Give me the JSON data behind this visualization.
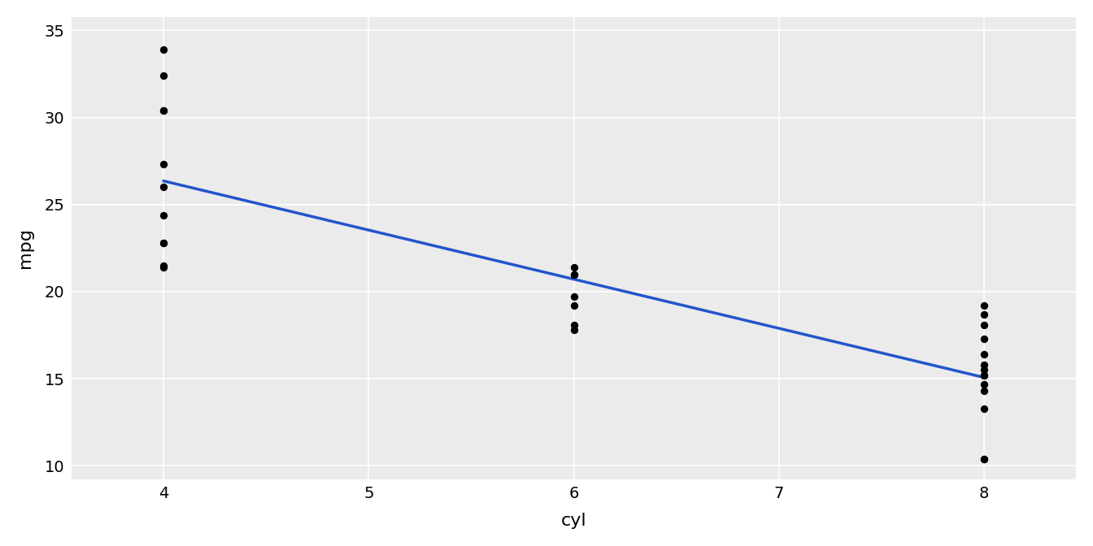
{
  "cyl": [
    4,
    4,
    4,
    4,
    4,
    4,
    4,
    4,
    4,
    4,
    4,
    6,
    6,
    6,
    6,
    6,
    6,
    6,
    8,
    8,
    8,
    8,
    8,
    8,
    8,
    8,
    8,
    8,
    8,
    8,
    8,
    8
  ],
  "mpg": [
    22.8,
    24.4,
    22.8,
    32.4,
    30.4,
    33.9,
    21.5,
    27.3,
    26.0,
    30.4,
    21.4,
    21.0,
    21.0,
    21.4,
    18.1,
    19.2,
    17.8,
    19.7,
    18.7,
    14.3,
    16.4,
    17.3,
    15.2,
    10.4,
    10.4,
    14.7,
    15.5,
    15.2,
    13.3,
    19.2,
    15.8,
    18.1
  ],
  "xlabel": "cyl",
  "ylabel": "mpg",
  "xlim": [
    3.55,
    8.45
  ],
  "ylim": [
    9.225,
    35.775
  ],
  "xticks": [
    4,
    5,
    6,
    7,
    8
  ],
  "yticks": [
    10,
    15,
    20,
    25,
    30,
    35
  ],
  "line_color": "#2255cc",
  "point_color": "#000000",
  "bg_color": "#ffffff",
  "panel_bg_color": "#ebebeb",
  "grid_color": "#ffffff",
  "point_size": 45,
  "line_width": 2.5
}
